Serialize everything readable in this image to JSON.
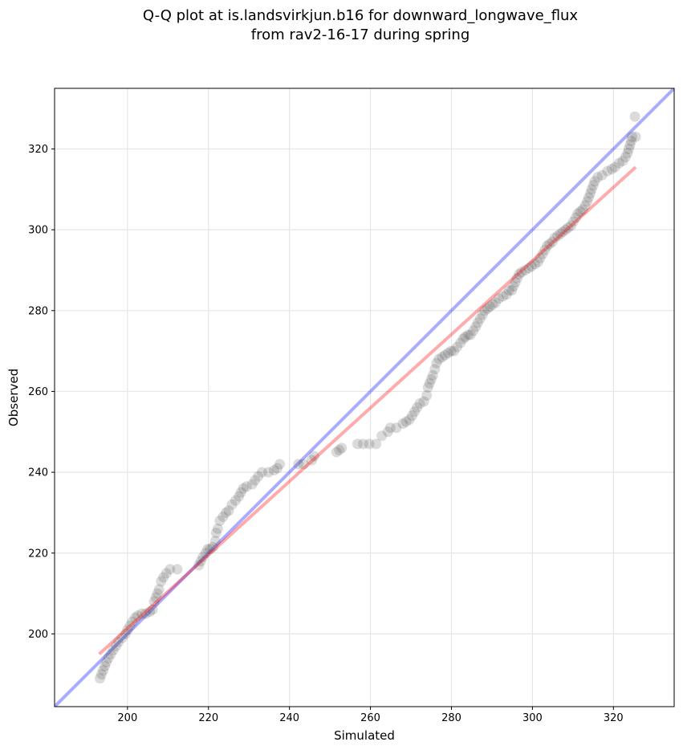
{
  "chart_data": {
    "type": "scatter",
    "title_lines": [
      "Q-Q plot at is.landsvirkjun.b16 for downward_longwave_flux",
      "from rav2-16-17 during spring"
    ],
    "xlabel": "Simulated",
    "ylabel": "Observed",
    "xlim": [
      182,
      335
    ],
    "ylim": [
      182,
      335
    ],
    "xticks": [
      200,
      220,
      240,
      260,
      280,
      300,
      320
    ],
    "yticks": [
      200,
      220,
      240,
      260,
      280,
      300,
      320
    ],
    "grid": true,
    "colors": {
      "points": "#4d4d4d",
      "identity_line": "#0000ff",
      "fit_line": "#ff0000",
      "grid": "#e6e6e6"
    },
    "identity_line": {
      "x": [
        182,
        335
      ],
      "y": [
        182,
        335
      ]
    },
    "fit_line": {
      "x": [
        193,
        325.5
      ],
      "y": [
        195,
        315.5
      ]
    },
    "series": [
      {
        "name": "quantiles",
        "points": [
          [
            193.2,
            189
          ],
          [
            193.6,
            190
          ],
          [
            194,
            191
          ],
          [
            194.4,
            192
          ],
          [
            194.8,
            193
          ],
          [
            195.3,
            194
          ],
          [
            195.9,
            195
          ],
          [
            196.5,
            196
          ],
          [
            197.2,
            197
          ],
          [
            197.8,
            198
          ],
          [
            198.7,
            199
          ],
          [
            199.5,
            200
          ],
          [
            200,
            201
          ],
          [
            200.6,
            202
          ],
          [
            201.2,
            203
          ],
          [
            201.9,
            204
          ],
          [
            202.5,
            204.5
          ],
          [
            203.5,
            205
          ],
          [
            204.5,
            205
          ],
          [
            205.5,
            205.5
          ],
          [
            206.2,
            206
          ],
          [
            206.6,
            208
          ],
          [
            207,
            209
          ],
          [
            207.4,
            210
          ],
          [
            207.8,
            211
          ],
          [
            208.3,
            213
          ],
          [
            208.9,
            214
          ],
          [
            209.6,
            215
          ],
          [
            210.5,
            216
          ],
          [
            212.3,
            216
          ],
          [
            217.6,
            217
          ],
          [
            218.1,
            218
          ],
          [
            218.6,
            219
          ],
          [
            219.3,
            220
          ],
          [
            219.8,
            221
          ],
          [
            220.4,
            221
          ],
          [
            221.1,
            221.5
          ],
          [
            221.7,
            223
          ],
          [
            221.9,
            225
          ],
          [
            222.3,
            226
          ],
          [
            222.8,
            228
          ],
          [
            223.6,
            229
          ],
          [
            224.3,
            230
          ],
          [
            225,
            230.5
          ],
          [
            225.8,
            232
          ],
          [
            226.7,
            233
          ],
          [
            227.5,
            234
          ],
          [
            228,
            235
          ],
          [
            228.6,
            236
          ],
          [
            229.4,
            236.5
          ],
          [
            230.8,
            237
          ],
          [
            231.5,
            238
          ],
          [
            232.3,
            239
          ],
          [
            233.2,
            240
          ],
          [
            234.8,
            240
          ],
          [
            236.2,
            240.5
          ],
          [
            237,
            241
          ],
          [
            237.6,
            242
          ],
          [
            242.2,
            242
          ],
          [
            243.5,
            242
          ],
          [
            245.5,
            243
          ],
          [
            246.1,
            244
          ],
          [
            251.6,
            245
          ],
          [
            252.3,
            245.5
          ],
          [
            252.9,
            246
          ],
          [
            256.8,
            247
          ],
          [
            258.2,
            247
          ],
          [
            259.7,
            247
          ],
          [
            261.4,
            247
          ],
          [
            262.8,
            249
          ],
          [
            264.3,
            250
          ],
          [
            264.9,
            251
          ],
          [
            266.4,
            251
          ],
          [
            268,
            252
          ],
          [
            268.8,
            252.5
          ],
          [
            269.6,
            253
          ],
          [
            270.3,
            254
          ],
          [
            270.9,
            255
          ],
          [
            271.5,
            256
          ],
          [
            272.2,
            257
          ],
          [
            273.2,
            257.5
          ],
          [
            273.9,
            259
          ],
          [
            274.2,
            261
          ],
          [
            274.6,
            262
          ],
          [
            275,
            263
          ],
          [
            275.4,
            264
          ],
          [
            275.9,
            265.5
          ],
          [
            276.3,
            267
          ],
          [
            276.9,
            268
          ],
          [
            277.7,
            268.5
          ],
          [
            278.4,
            269
          ],
          [
            279.2,
            269.5
          ],
          [
            279.9,
            270
          ],
          [
            280.6,
            270
          ],
          [
            281.4,
            271
          ],
          [
            282.2,
            272
          ],
          [
            282.9,
            273
          ],
          [
            283.4,
            273.5
          ],
          [
            284.1,
            274
          ],
          [
            284.7,
            274
          ],
          [
            285.4,
            275
          ],
          [
            286,
            276
          ],
          [
            286.5,
            277
          ],
          [
            287.1,
            278
          ],
          [
            287.7,
            279
          ],
          [
            288.2,
            280
          ],
          [
            288.9,
            280.5
          ],
          [
            289.5,
            281
          ],
          [
            290.2,
            281.5
          ],
          [
            290.9,
            282
          ],
          [
            291.7,
            283
          ],
          [
            292.7,
            283.5
          ],
          [
            293.6,
            284
          ],
          [
            294.2,
            285
          ],
          [
            294.9,
            285
          ],
          [
            295.3,
            286
          ],
          [
            295.8,
            287
          ],
          [
            296.2,
            288
          ],
          [
            296.7,
            289
          ],
          [
            297.3,
            289.5
          ],
          [
            298.2,
            290
          ],
          [
            299.1,
            290.5
          ],
          [
            299.8,
            291
          ],
          [
            300.6,
            291.5
          ],
          [
            301.4,
            292
          ],
          [
            301.9,
            293
          ],
          [
            302.5,
            294
          ],
          [
            303.1,
            295
          ],
          [
            303.6,
            296
          ],
          [
            304.2,
            296.5
          ],
          [
            304.9,
            297
          ],
          [
            305.5,
            298
          ],
          [
            306.2,
            298.5
          ],
          [
            306.9,
            299
          ],
          [
            307.5,
            299.5
          ],
          [
            308.2,
            300
          ],
          [
            308.8,
            300.5
          ],
          [
            309.5,
            301
          ],
          [
            310.1,
            302
          ],
          [
            310.7,
            303
          ],
          [
            311.2,
            304
          ],
          [
            311.8,
            304.5
          ],
          [
            312.4,
            305
          ],
          [
            313,
            306
          ],
          [
            313.5,
            307
          ],
          [
            313.9,
            308
          ],
          [
            314.3,
            309
          ],
          [
            314.6,
            310
          ],
          [
            315,
            311
          ],
          [
            315.4,
            312
          ],
          [
            316.1,
            313
          ],
          [
            317.2,
            313.5
          ],
          [
            318.5,
            314.5
          ],
          [
            319.6,
            315
          ],
          [
            320.4,
            315.5
          ],
          [
            321.4,
            316.5
          ],
          [
            322.3,
            317
          ],
          [
            323,
            318
          ],
          [
            323.5,
            319
          ],
          [
            323.8,
            320
          ],
          [
            324.1,
            321
          ],
          [
            324.4,
            322
          ],
          [
            324.6,
            323
          ],
          [
            325.5,
            323
          ],
          [
            325.3,
            328
          ]
        ]
      }
    ]
  }
}
